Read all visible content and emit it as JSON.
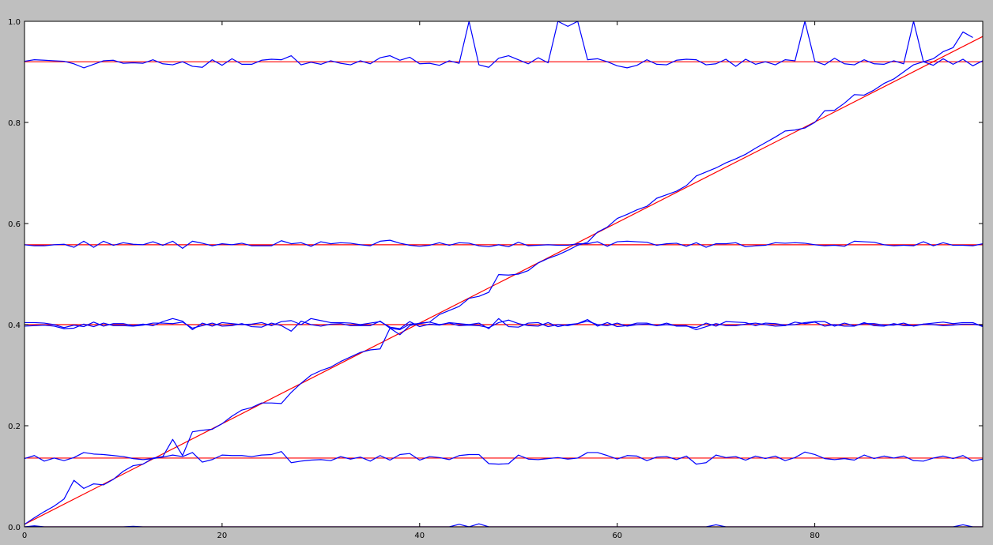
{
  "chart_data": {
    "type": "line",
    "title": "",
    "xlabel": "",
    "ylabel": "",
    "xlim": [
      0,
      97
    ],
    "ylim": [
      0.0,
      1.0
    ],
    "x_ticks": [
      0,
      20,
      40,
      60,
      80
    ],
    "x_tick_labels": [
      "0",
      "20",
      "40",
      "60",
      "80"
    ],
    "y_ticks": [
      0.0,
      0.2,
      0.4,
      0.6,
      0.8,
      1.0
    ],
    "y_tick_labels": [
      "0.0",
      "0.2",
      "0.4",
      "0.6",
      "0.8",
      "1.0"
    ],
    "grid": false,
    "legend": "none",
    "colors": {
      "figure_background": "#bfbfbf",
      "axes_background": "#ffffff",
      "noisy_series": "#0000ff",
      "reference_lines": "#ff0000"
    },
    "reference_lines": [
      {
        "type": "horizontal",
        "y": 0.92
      },
      {
        "type": "horizontal",
        "y": 0.558
      },
      {
        "type": "horizontal",
        "y": 0.4
      },
      {
        "type": "horizontal",
        "y": 0.136
      },
      {
        "type": "horizontal",
        "y": 0.0
      },
      {
        "type": "diagonal",
        "x": [
          0,
          97
        ],
        "y": [
          0.005,
          0.97
        ]
      }
    ],
    "series": [
      {
        "values": [
          0.921,
          0.924,
          0.923,
          0.922,
          0.921,
          0.916,
          0.908,
          0.915,
          0.922,
          0.923,
          0.917,
          0.918,
          0.917,
          0.924,
          0.916,
          0.914,
          0.92,
          0.911,
          0.909,
          0.924,
          0.913,
          0.926,
          0.915,
          0.915,
          0.923,
          0.925,
          0.924,
          0.932,
          0.914,
          0.919,
          0.915,
          0.922,
          0.917,
          0.914,
          0.922,
          0.916,
          0.928,
          0.932,
          0.923,
          0.929,
          0.916,
          0.917,
          0.913,
          0.922,
          0.917,
          1.0,
          0.914,
          0.909,
          0.927,
          0.932,
          0.924,
          0.916,
          0.928,
          0.918,
          1.0,
          0.99,
          1.0,
          0.924,
          0.926,
          0.92,
          0.912,
          0.908,
          0.913,
          0.924,
          0.915,
          0.914,
          0.923,
          0.925,
          0.924,
          0.914,
          0.916,
          0.925,
          0.911,
          0.925,
          0.915,
          0.92,
          0.914,
          0.924,
          0.922,
          1.0,
          0.921,
          0.914,
          0.927,
          0.916,
          0.914,
          0.924,
          0.916,
          0.915,
          0.922,
          0.916,
          1.0,
          0.92,
          0.913,
          0.926,
          0.915,
          0.925,
          0.912,
          0.922
        ]
      },
      {
        "values": [
          0.558,
          0.556,
          0.556,
          0.558,
          0.559,
          0.553,
          0.565,
          0.553,
          0.565,
          0.557,
          0.562,
          0.559,
          0.558,
          0.564,
          0.557,
          0.565,
          0.551,
          0.565,
          0.561,
          0.556,
          0.56,
          0.558,
          0.561,
          0.556,
          0.556,
          0.556,
          0.566,
          0.56,
          0.562,
          0.555,
          0.564,
          0.56,
          0.562,
          0.561,
          0.558,
          0.556,
          0.565,
          0.567,
          0.561,
          0.557,
          0.555,
          0.557,
          0.562,
          0.557,
          0.562,
          0.561,
          0.556,
          0.554,
          0.558,
          0.554,
          0.563,
          0.556,
          0.557,
          0.558,
          0.557,
          0.557,
          0.56,
          0.56,
          0.564,
          0.555,
          0.564,
          0.565,
          0.564,
          0.563,
          0.557,
          0.56,
          0.561,
          0.555,
          0.562,
          0.553,
          0.56,
          0.56,
          0.562,
          0.554,
          0.556,
          0.557,
          0.562,
          0.561,
          0.562,
          0.561,
          0.558,
          0.556,
          0.557,
          0.555,
          0.565,
          0.564,
          0.563,
          0.558,
          0.556,
          0.557,
          0.556,
          0.564,
          0.556,
          0.562,
          0.557,
          0.557,
          0.556,
          0.56
        ]
      },
      {
        "values": [
          0.404,
          0.404,
          0.403,
          0.4,
          0.394,
          0.399,
          0.396,
          0.405,
          0.397,
          0.402,
          0.402,
          0.398,
          0.401,
          0.398,
          0.406,
          0.412,
          0.407,
          0.39,
          0.403,
          0.397,
          0.404,
          0.402,
          0.4,
          0.401,
          0.404,
          0.398,
          0.406,
          0.408,
          0.4,
          0.412,
          0.408,
          0.404,
          0.404,
          0.403,
          0.4,
          0.403,
          0.406,
          0.395,
          0.392,
          0.406,
          0.396,
          0.401,
          0.399,
          0.404,
          0.402,
          0.4,
          0.403,
          0.392,
          0.412,
          0.396,
          0.395,
          0.403,
          0.404,
          0.396,
          0.4,
          0.398,
          0.402,
          0.41,
          0.397,
          0.404,
          0.396,
          0.398,
          0.403,
          0.403,
          0.398,
          0.403,
          0.397,
          0.397,
          0.394,
          0.403,
          0.397,
          0.406,
          0.405,
          0.404,
          0.398,
          0.403,
          0.402,
          0.399,
          0.4,
          0.404,
          0.406,
          0.406,
          0.397,
          0.403,
          0.398,
          0.402,
          0.402,
          0.399,
          0.399,
          0.403,
          0.397,
          0.401,
          0.403,
          0.405,
          0.402,
          0.404,
          0.404,
          0.396
        ]
      },
      {
        "values": [
          0.397,
          0.398,
          0.399,
          0.397,
          0.392,
          0.393,
          0.401,
          0.396,
          0.403,
          0.398,
          0.398,
          0.397,
          0.399,
          0.403,
          0.403,
          0.402,
          0.405,
          0.393,
          0.398,
          0.403,
          0.397,
          0.398,
          0.402,
          0.396,
          0.395,
          0.403,
          0.398,
          0.387,
          0.407,
          0.4,
          0.397,
          0.401,
          0.402,
          0.398,
          0.398,
          0.398,
          0.407,
          0.393,
          0.39,
          0.401,
          0.402,
          0.405,
          0.4,
          0.403,
          0.398,
          0.399,
          0.398,
          0.394,
          0.404,
          0.409,
          0.402,
          0.398,
          0.397,
          0.404,
          0.396,
          0.4,
          0.402,
          0.407,
          0.4,
          0.398,
          0.403,
          0.397,
          0.4,
          0.401,
          0.398,
          0.4,
          0.398,
          0.398,
          0.39,
          0.396,
          0.402,
          0.398,
          0.398,
          0.401,
          0.403,
          0.4,
          0.397,
          0.398,
          0.405,
          0.402,
          0.405,
          0.397,
          0.4,
          0.397,
          0.397,
          0.404,
          0.398,
          0.397,
          0.402,
          0.398,
          0.398,
          0.401,
          0.4,
          0.398,
          0.399,
          0.401,
          0.401,
          0.398
        ]
      },
      {
        "values": [
          0.135,
          0.141,
          0.13,
          0.136,
          0.131,
          0.137,
          0.147,
          0.144,
          0.143,
          0.141,
          0.139,
          0.135,
          0.133,
          0.135,
          0.138,
          0.142,
          0.139,
          0.147,
          0.128,
          0.133,
          0.142,
          0.141,
          0.141,
          0.139,
          0.142,
          0.143,
          0.149,
          0.127,
          0.13,
          0.132,
          0.133,
          0.131,
          0.139,
          0.134,
          0.138,
          0.13,
          0.141,
          0.132,
          0.143,
          0.145,
          0.132,
          0.139,
          0.137,
          0.133,
          0.141,
          0.143,
          0.143,
          0.125,
          0.124,
          0.125,
          0.142,
          0.134,
          0.133,
          0.135,
          0.137,
          0.134,
          0.136,
          0.147,
          0.147,
          0.141,
          0.134,
          0.141,
          0.14,
          0.131,
          0.138,
          0.139,
          0.133,
          0.14,
          0.124,
          0.127,
          0.142,
          0.137,
          0.139,
          0.132,
          0.14,
          0.135,
          0.14,
          0.131,
          0.137,
          0.148,
          0.143,
          0.135,
          0.133,
          0.135,
          0.132,
          0.142,
          0.135,
          0.14,
          0.136,
          0.14,
          0.131,
          0.13,
          0.136,
          0.14,
          0.135,
          0.141,
          0.13,
          0.134
        ]
      },
      {
        "values": [
          0.005,
          0.018,
          0.03,
          0.041,
          0.055,
          0.092,
          0.076,
          0.085,
          0.083,
          0.094,
          0.11,
          0.121,
          0.124,
          0.136,
          0.139,
          0.173,
          0.141,
          0.188,
          0.191,
          0.193,
          0.204,
          0.219,
          0.231,
          0.236,
          0.245,
          0.245,
          0.244,
          0.266,
          0.284,
          0.3,
          0.309,
          0.316,
          0.327,
          0.336,
          0.345,
          0.35,
          0.352,
          0.393,
          0.38,
          0.398,
          0.403,
          0.405,
          0.42,
          0.428,
          0.436,
          0.452,
          0.456,
          0.464,
          0.499,
          0.498,
          0.5,
          0.507,
          0.522,
          0.531,
          0.538,
          0.547,
          0.557,
          0.563,
          0.583,
          0.593,
          0.61,
          0.618,
          0.627,
          0.634,
          0.65,
          0.657,
          0.664,
          0.675,
          0.694,
          0.702,
          0.71,
          0.72,
          0.728,
          0.737,
          0.749,
          0.76,
          0.771,
          0.783,
          0.785,
          0.789,
          0.8,
          0.823,
          0.824,
          0.838,
          0.855,
          0.854,
          0.864,
          0.877,
          0.886,
          0.9,
          0.914,
          0.92,
          0.926,
          0.94,
          0.948,
          0.979,
          0.968
        ]
      },
      {
        "values": [
          0.0,
          0.002,
          0.0,
          0.0,
          0.0,
          0.0,
          0.0,
          0.0,
          0.0,
          0.0,
          0.0,
          0.001,
          0.0,
          0.0,
          0.0,
          0.0,
          0.0,
          0.0,
          0.0,
          0.0,
          0.0,
          0.0,
          0.0,
          0.0,
          0.0,
          0.0,
          0.0,
          0.0,
          0.0,
          0.0,
          0.0,
          0.0,
          0.0,
          0.0,
          0.0,
          0.0,
          0.0,
          0.0,
          0.0,
          0.0,
          0.0,
          0.0,
          0.0,
          0.0,
          0.005,
          0.0,
          0.006,
          0.0,
          0.0,
          0.0,
          0.0,
          0.0,
          0.0,
          0.0,
          0.0,
          0.0,
          0.0,
          0.0,
          0.0,
          0.0,
          0.0,
          0.0,
          0.0,
          0.0,
          0.0,
          0.0,
          0.0,
          0.0,
          0.0,
          0.0,
          0.004,
          0.0,
          0.0,
          0.0,
          0.0,
          0.0,
          0.0,
          0.0,
          0.0,
          0.0,
          0.0,
          0.0,
          0.0,
          0.0,
          0.0,
          0.0,
          0.0,
          0.0,
          0.0,
          0.0,
          0.0,
          0.0,
          0.0,
          0.0,
          0.0,
          0.004,
          0.0,
          0.0
        ]
      }
    ]
  }
}
